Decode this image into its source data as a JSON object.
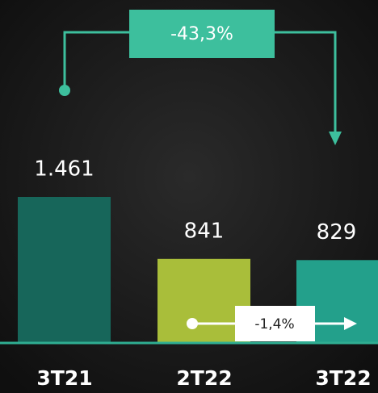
{
  "chart_data": {
    "type": "bar",
    "categories": [
      "3T21",
      "2T22",
      "3T22"
    ],
    "values": [
      1461,
      841,
      829
    ],
    "value_labels": [
      "1.461",
      "841",
      "829"
    ],
    "colors": [
      "#17665a",
      "#a9be3a",
      "#23a08b"
    ],
    "annotations": [
      {
        "text": "-43,3%"
      },
      {
        "text": "-1,4%"
      }
    ]
  }
}
